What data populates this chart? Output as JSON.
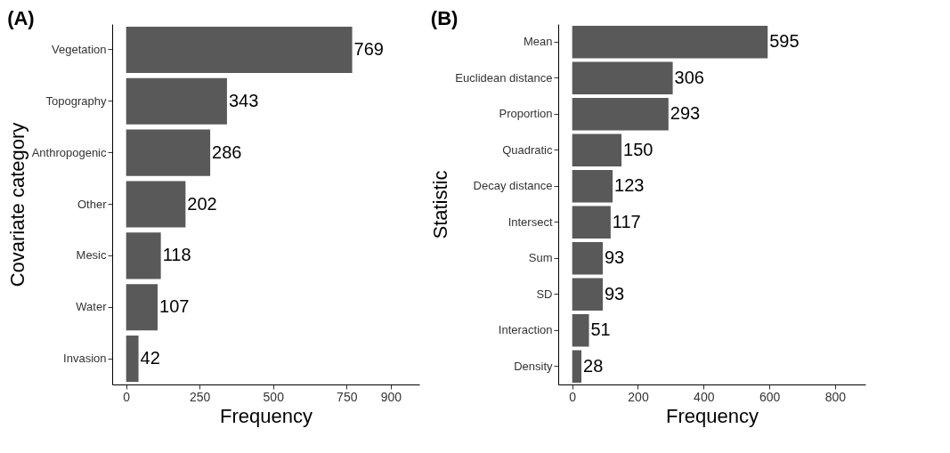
{
  "chart_data": [
    {
      "type": "bar",
      "orientation": "horizontal",
      "title": "(A)",
      "xlabel": "Frequency",
      "ylabel": "Covariate category",
      "categories": [
        "Vegetation",
        "Topography",
        "Anthropogenic",
        "Other",
        "Mesic",
        "Water",
        "Invasion"
      ],
      "values": [
        769,
        343,
        286,
        202,
        118,
        107,
        42
      ],
      "color": "#595959",
      "xlim": [
        -47.5,
        997.5
      ],
      "xticks": [
        0,
        250,
        500,
        750,
        900
      ],
      "data_labels": true,
      "grid": false
    },
    {
      "type": "bar",
      "orientation": "horizontal",
      "title": "(B)",
      "xlabel": "Frequency",
      "ylabel": "Statistic",
      "categories": [
        "Mean",
        "Euclidean distance",
        "Proportion",
        "Quadratic",
        "Decay distance",
        "Intersect",
        "Sum",
        "SD",
        "Interaction",
        "Density"
      ],
      "values": [
        595,
        306,
        293,
        150,
        123,
        117,
        93,
        93,
        51,
        28
      ],
      "color": "#595959",
      "xlim": [
        -42.5,
        892.5
      ],
      "xticks": [
        0,
        200,
        400,
        600,
        800
      ],
      "data_labels": true,
      "grid": false
    }
  ]
}
